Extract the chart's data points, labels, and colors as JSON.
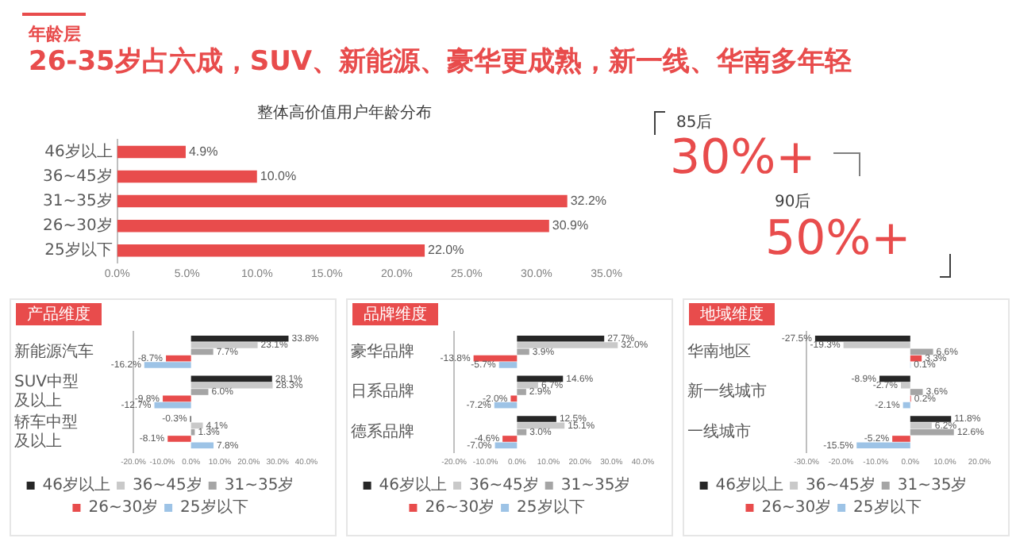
{
  "chart_data": [
    {
      "type": "bar",
      "orientation": "horizontal",
      "title": "整体高价值用户年龄分布",
      "categories": [
        "46岁以上",
        "36~45岁",
        "31~35岁",
        "26~30岁",
        "25岁以下"
      ],
      "values": [
        4.9,
        10.0,
        32.2,
        30.9,
        22.0
      ],
      "value_labels": [
        "4.9%",
        "10.0%",
        "32.2%",
        "30.9%",
        "22.0%"
      ],
      "color": "#e84c4c",
      "xlim": [
        0,
        35
      ],
      "xticks": [
        {
          "value": 0,
          "label": "0.0%"
        },
        {
          "value": 5,
          "label": "5.0%"
        },
        {
          "value": 10,
          "label": "10.0%"
        },
        {
          "value": 15,
          "label": "15.0%"
        },
        {
          "value": 20,
          "label": "20.0%"
        },
        {
          "value": 25,
          "label": "25.0%"
        },
        {
          "value": 30,
          "label": "30.0%"
        },
        {
          "value": 35,
          "label": "35.0%"
        }
      ],
      "grid": false,
      "legend": false,
      "annotations": [
        "年龄层",
        "26-35岁占六成，SUV、新能源、豪华更成熟，新一线、华南多年轻",
        "85后",
        "30%+",
        "90后",
        "50%+"
      ]
    },
    {
      "type": "bar",
      "orientation": "horizontal",
      "title": "产品维度",
      "categories": [
        "新能源汽车",
        "SUV中型及以上",
        "轿车中型及以上"
      ],
      "series": [
        {
          "name": "46岁以上",
          "color": "#262626",
          "values": [
            33.8,
            28.1,
            -0.3
          ],
          "value_labels": [
            "33.8%",
            "28.1%",
            "-0.3%"
          ]
        },
        {
          "name": "36~45岁",
          "color": "#c9c9c9",
          "values": [
            23.1,
            28.3,
            4.1
          ],
          "value_labels": [
            "23.1%",
            "28.3%",
            "4.1%"
          ]
        },
        {
          "name": "31~35岁",
          "color": "#a5a5a5",
          "values": [
            7.7,
            6.0,
            1.3
          ],
          "value_labels": [
            "7.7%",
            "6.0%",
            "1.3%"
          ]
        },
        {
          "name": "26~30岁",
          "color": "#e84c4c",
          "values": [
            -8.7,
            -9.8,
            -8.1
          ],
          "value_labels": [
            "-8.7%",
            "-9.8%",
            "-8.1%"
          ]
        },
        {
          "name": "25岁以下",
          "color": "#9dc3e6",
          "values": [
            -16.2,
            -12.7,
            7.8
          ],
          "value_labels": [
            "-16.2%",
            "-12.7%",
            "7.8%"
          ]
        }
      ],
      "xlim": [
        -20,
        40
      ],
      "xticks": [
        {
          "value": -20,
          "label": "-20.0%"
        },
        {
          "value": -10,
          "label": "-10.0%"
        },
        {
          "value": 0,
          "label": "0.0%"
        },
        {
          "value": 10,
          "label": "10.0%"
        },
        {
          "value": 20,
          "label": "20.0%"
        },
        {
          "value": 30,
          "label": "30.0%"
        },
        {
          "value": 40,
          "label": "40.0%"
        }
      ],
      "grid": false,
      "legend": "bottom"
    },
    {
      "type": "bar",
      "orientation": "horizontal",
      "title": "品牌维度",
      "categories": [
        "豪华品牌",
        "日系品牌",
        "德系品牌"
      ],
      "series": [
        {
          "name": "46岁以上",
          "color": "#262626",
          "values": [
            27.7,
            14.6,
            12.5
          ],
          "value_labels": [
            "27.7%",
            "14.6%",
            "12.5%"
          ]
        },
        {
          "name": "36~45岁",
          "color": "#c9c9c9",
          "values": [
            32.0,
            6.7,
            15.1
          ],
          "value_labels": [
            "32.0%",
            "6.7%",
            "15.1%"
          ]
        },
        {
          "name": "31~35岁",
          "color": "#a5a5a5",
          "values": [
            3.9,
            2.9,
            3.0
          ],
          "value_labels": [
            "3.9%",
            "2.9%",
            "3.0%"
          ]
        },
        {
          "name": "26~30岁",
          "color": "#e84c4c",
          "values": [
            -13.8,
            -2.0,
            -4.6
          ],
          "value_labels": [
            "-13.8%",
            "-2.0%",
            "-4.6%"
          ]
        },
        {
          "name": "25岁以下",
          "color": "#9dc3e6",
          "values": [
            -5.7,
            -7.2,
            -7.0
          ],
          "value_labels": [
            "-5.7%",
            "-7.2%",
            "-7.0%"
          ]
        }
      ],
      "xlim": [
        -20,
        40
      ],
      "xticks": [
        {
          "value": -20,
          "label": "-20.0%"
        },
        {
          "value": -10,
          "label": "-10.0%"
        },
        {
          "value": 0,
          "label": "0.0%"
        },
        {
          "value": 10,
          "label": "10.0%"
        },
        {
          "value": 20,
          "label": "20.0%"
        },
        {
          "value": 30,
          "label": "30.0%"
        },
        {
          "value": 40,
          "label": "40.0%"
        }
      ],
      "grid": false,
      "legend": "bottom"
    },
    {
      "type": "bar",
      "orientation": "horizontal",
      "title": "地域维度",
      "categories": [
        "华南地区",
        "新一线城市",
        "一线城市"
      ],
      "series": [
        {
          "name": "46岁以上",
          "color": "#262626",
          "values": [
            -27.5,
            -8.9,
            11.8
          ],
          "value_labels": [
            "-27.5%",
            "-8.9%",
            "11.8%"
          ]
        },
        {
          "name": "36~45岁",
          "color": "#c9c9c9",
          "values": [
            -19.3,
            -2.7,
            6.2
          ],
          "value_labels": [
            "-19.3%",
            "-2.7%",
            "6.2%"
          ]
        },
        {
          "name": "31~35岁",
          "color": "#a5a5a5",
          "values": [
            6.6,
            3.6,
            12.6
          ],
          "value_labels": [
            "6.6%",
            "3.6%",
            "12.6%"
          ]
        },
        {
          "name": "26~30岁",
          "color": "#e84c4c",
          "values": [
            3.3,
            0.2,
            -5.2
          ],
          "value_labels": [
            "3.3%",
            "0.2%",
            "-5.2%"
          ]
        },
        {
          "name": "25岁以下",
          "color": "#9dc3e6",
          "values": [
            0.1,
            -2.1,
            -15.5
          ],
          "value_labels": [
            "0.1%",
            "-2.1%",
            "-15.5%"
          ]
        }
      ],
      "xlim": [
        -30,
        20
      ],
      "xticks": [
        {
          "value": -30,
          "label": "-30.0%"
        },
        {
          "value": -20,
          "label": "-20.0%"
        },
        {
          "value": -10,
          "label": "-10.0%"
        },
        {
          "value": 0,
          "label": "0.0%"
        },
        {
          "value": 10,
          "label": "10.0%"
        },
        {
          "value": 20,
          "label": "20.0%"
        }
      ],
      "grid": false,
      "legend": "bottom"
    }
  ]
}
